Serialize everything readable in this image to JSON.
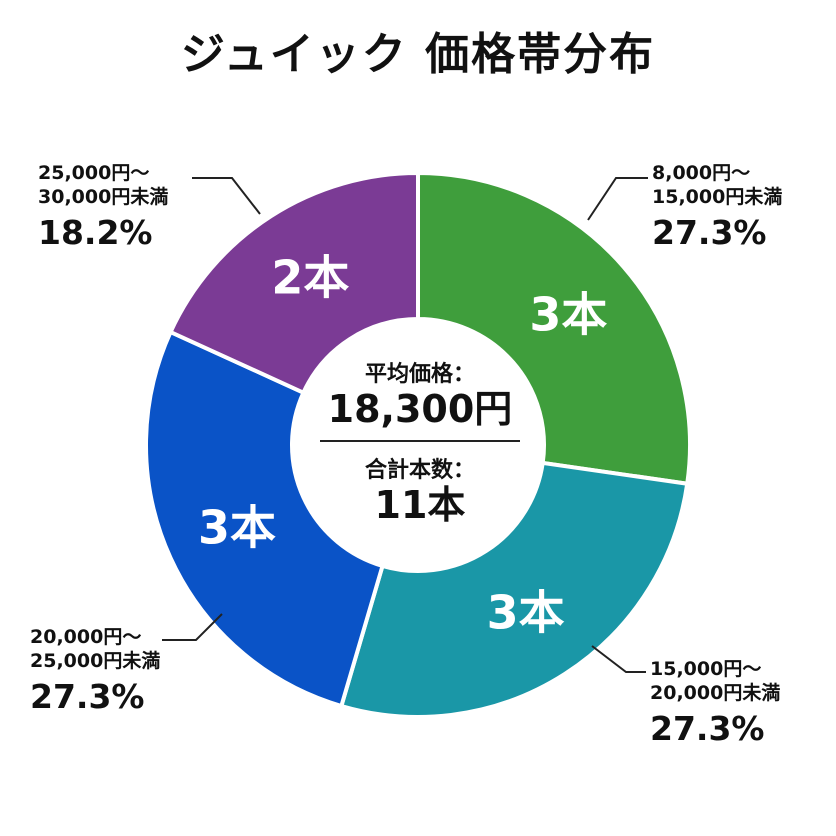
{
  "title": "ジュイック 価格帯分布",
  "center": {
    "avg_label": "平均価格：",
    "avg_value": "18,300円",
    "count_label": "合計本数：",
    "count_value": "11本"
  },
  "chart_data": {
    "type": "pie",
    "donut": true,
    "title": "ジュイック 価格帯分布",
    "total": 11,
    "slices": [
      {
        "range_line1": "8,000円〜",
        "range_line2": "15,000円未満",
        "count": 3,
        "count_label": "3本",
        "percent": 27.3,
        "percent_label": "27.3%",
        "color": "#3f9e3c"
      },
      {
        "range_line1": "15,000円〜",
        "range_line2": "20,000円未満",
        "count": 3,
        "count_label": "3本",
        "percent": 27.3,
        "percent_label": "27.3%",
        "color": "#1a97a7"
      },
      {
        "range_line1": "20,000円〜",
        "range_line2": "25,000円未満",
        "count": 3,
        "count_label": "3本",
        "percent": 27.3,
        "percent_label": "27.3%",
        "color": "#0a53c7"
      },
      {
        "range_line1": "25,000円〜",
        "range_line2": "30,000円未満",
        "count": 2,
        "count_label": "2本",
        "percent": 18.2,
        "percent_label": "18.2%",
        "color": "#7b3b95"
      }
    ]
  }
}
